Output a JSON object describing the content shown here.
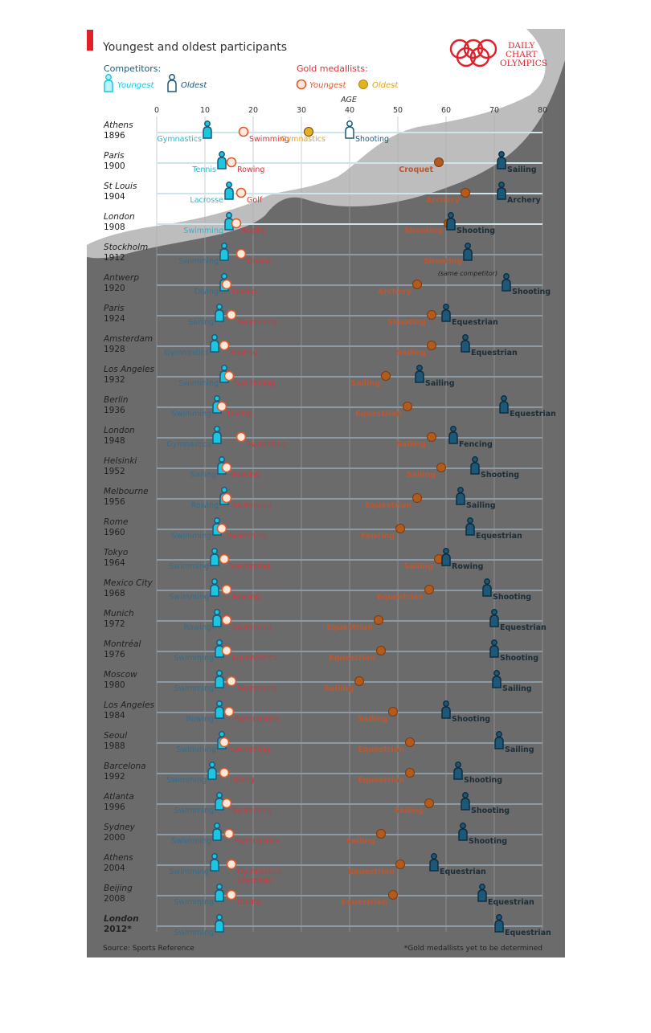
{
  "header": {
    "title": "Youngest and oldest participants",
    "brand_line1": "DAILY",
    "brand_line2": "CHART",
    "brand_line3": "OLYMPICS"
  },
  "legend": {
    "competitors_label": "Competitors:",
    "youngest": "Youngest",
    "oldest": "Oldest",
    "medallists_label": "Gold medallists:",
    "gold_youngest": "Youngest",
    "gold_oldest": "Oldest"
  },
  "footer": {
    "source": "Source: Sports Reference",
    "note": "*Gold medallists yet to be determined"
  },
  "colors": {
    "accent_red": "#e1202b",
    "competitor_youngest": "#1bc7e0",
    "competitor_oldest": "#1d5878",
    "gold_youngest_stroke": "#e05a2b",
    "gold_oldest_fill": "#e3b21e",
    "sport_red": "#d8353b",
    "sport_orange": "#c4552b",
    "sport_blue": "#2f6f92",
    "ghost_grey": "#bdbdbd",
    "background": "#ffffff"
  },
  "chart_data": {
    "type": "scatter",
    "title": "Youngest and oldest participants",
    "xlabel": "AGE",
    "xlim": [
      0,
      80
    ],
    "xticks": [
      0,
      10,
      20,
      30,
      40,
      50,
      60,
      70,
      80
    ],
    "grid": true,
    "legend_position": "top",
    "series_names": [
      "Competitors: Youngest",
      "Competitors: Oldest",
      "Gold medallists: Youngest",
      "Gold medallists: Oldest"
    ],
    "rows": [
      {
        "city": "Athens",
        "year": "1896",
        "cy": 10.5,
        "cy_sport": "Gymnastics",
        "gy": 18,
        "gy_sport": "Swimming",
        "go": 31.5,
        "go_sport": "Gymnastics",
        "co": 40,
        "co_sport": "Shooting"
      },
      {
        "city": "Paris",
        "year": "1900",
        "cy": 13.5,
        "cy_sport": "Tennis",
        "gy": 15.5,
        "gy_sport": "Rowing",
        "go": 58.5,
        "go_sport": "Croquet",
        "co": 71.5,
        "co_sport": "Sailing"
      },
      {
        "city": "St Louis",
        "year": "1904",
        "cy": 15,
        "cy_sport": "Lacrosse",
        "gy": 17.5,
        "gy_sport": "Golf",
        "go": 64,
        "go_sport": "Archery",
        "co": 71.5,
        "co_sport": "Archery"
      },
      {
        "city": "London",
        "year": "1908",
        "cy": 15,
        "cy_sport": "Swimming",
        "gy": 16.5,
        "gy_sport": "Rugby",
        "go": 60.5,
        "go_sport": "Shooting",
        "co": 61,
        "co_sport": "Shooting"
      },
      {
        "city": "Stockholm",
        "year": "1912",
        "cy": 14,
        "cy_sport": "Swimming",
        "gy": 17.5,
        "gy_sport": "Diving",
        "go": 64.5,
        "go_sport": "Shooting",
        "co": 64.5,
        "co_sport": "",
        "note": "(same competitor)"
      },
      {
        "city": "Antwerp",
        "year": "1920",
        "cy": 14,
        "cy_sport": "Diving",
        "gy": 14.5,
        "gy_sport": "Diving",
        "go": 54,
        "go_sport": "Archery",
        "co": 72.5,
        "co_sport": "Shooting"
      },
      {
        "city": "Paris",
        "year": "1924",
        "cy": 13,
        "cy_sport": "Sailing",
        "gy": 15.5,
        "gy_sport": "Swimming",
        "go": 57,
        "go_sport": "Shooting",
        "co": 60,
        "co_sport": "Equestrian"
      },
      {
        "city": "Amsterdam",
        "year": "1928",
        "cy": 12,
        "cy_sport": "Gymnastics",
        "gy": 14,
        "gy_sport": "Rowing",
        "go": 57,
        "go_sport": "Sailing",
        "co": 64,
        "co_sport": "Equestrian"
      },
      {
        "city": "Los Angeles",
        "year": "1932",
        "cy": 14,
        "cy_sport": "Swimming",
        "gy": 15,
        "gy_sport": "Swimming",
        "go": 47.5,
        "go_sport": "Sailing",
        "co": 54.5,
        "co_sport": "Sailing"
      },
      {
        "city": "Berlin",
        "year": "1936",
        "cy": 12.5,
        "cy_sport": "Swimming",
        "gy": 13.5,
        "gy_sport": "Diving",
        "go": 52,
        "go_sport": "Equestrian",
        "co": 72,
        "co_sport": "Equestrian"
      },
      {
        "city": "London",
        "year": "1948",
        "cy": 12.5,
        "cy_sport": "Gymnastics",
        "gy": 17.5,
        "gy_sport": "Swimming",
        "go": 57,
        "go_sport": "Sailing",
        "co": 61.5,
        "co_sport": "Fencing"
      },
      {
        "city": "Helsinki",
        "year": "1952",
        "cy": 13.5,
        "cy_sport": "Sailing",
        "gy": 14.5,
        "gy_sport": "Rowing",
        "go": 59,
        "go_sport": "Sailing",
        "co": 66,
        "co_sport": "Shooting"
      },
      {
        "city": "Melbourne",
        "year": "1956",
        "cy": 14,
        "cy_sport": "Rowing",
        "gy": 14.5,
        "gy_sport": "Swimming",
        "go": 54,
        "go_sport": "Equestrian",
        "co": 63,
        "co_sport": "Sailing"
      },
      {
        "city": "Rome",
        "year": "1960",
        "cy": 12.5,
        "cy_sport": "Swimming",
        "gy": 13.5,
        "gy_sport": "Swimming",
        "go": 50.5,
        "go_sport": "Fencing",
        "co": 65,
        "co_sport": "Equestrian"
      },
      {
        "city": "Tokyo",
        "year": "1964",
        "cy": 12,
        "cy_sport": "Swimming",
        "gy": 14,
        "gy_sport": "Swimming",
        "go": 58.5,
        "go_sport": "Sailing",
        "co": 60,
        "co_sport": "Rowing"
      },
      {
        "city": "Mexico City",
        "year": "1968",
        "cy": 12,
        "cy_sport": "Swimming",
        "gy": 14.5,
        "gy_sport": "Rowing",
        "go": 56.5,
        "go_sport": "Equestrian",
        "co": 68.5,
        "co_sport": "Shooting"
      },
      {
        "city": "Munich",
        "year": "1972",
        "cy": 12.5,
        "cy_sport": "Rowing",
        "gy": 14.5,
        "gy_sport": "Swimming",
        "go": 46,
        "go_sport": "Equestrian",
        "co": 70,
        "co_sport": "Equestrian"
      },
      {
        "city": "Montréal",
        "year": "1976",
        "cy": 13,
        "cy_sport": "Swimming",
        "gy": 14.5,
        "gy_sport": "Gymnastics",
        "go": 46.5,
        "go_sport": "Equestrian",
        "co": 70,
        "co_sport": "Shooting"
      },
      {
        "city": "Moscow",
        "year": "1980",
        "cy": 13,
        "cy_sport": "Swimming",
        "gy": 15.5,
        "gy_sport": "Swimming",
        "go": 42,
        "go_sport": "Sailing",
        "co": 70.5,
        "co_sport": "Sailing"
      },
      {
        "city": "Los Angeles",
        "year": "1984",
        "cy": 13,
        "cy_sport": "Rowing",
        "gy": 15,
        "gy_sport": "Gymnastics",
        "go": 49,
        "go_sport": "Sailing",
        "co": 60,
        "co_sport": "Shooting"
      },
      {
        "city": "Seoul",
        "year": "1988",
        "cy": 13.5,
        "cy_sport": "Swimming",
        "gy": 14,
        "gy_sport": "Swimming",
        "go": 52.5,
        "go_sport": "Equestrian",
        "co": 71,
        "co_sport": "Sailing"
      },
      {
        "city": "Barcelona",
        "year": "1992",
        "cy": 11.5,
        "cy_sport": "Swimming",
        "gy": 14,
        "gy_sport": "Diving",
        "go": 52.5,
        "go_sport": "Equestrian",
        "co": 62.5,
        "co_sport": "Shooting"
      },
      {
        "city": "Atlanta",
        "year": "1996",
        "cy": 13,
        "cy_sport": "Swimming",
        "gy": 14.5,
        "gy_sport": "Swimming",
        "go": 56.5,
        "go_sport": "Sailing",
        "co": 64,
        "co_sport": "Shooting"
      },
      {
        "city": "Sydney",
        "year": "2000",
        "cy": 12.5,
        "cy_sport": "Swimming",
        "gy": 15,
        "gy_sport": "Gymnastics",
        "go": 46.5,
        "go_sport": "Sailing",
        "co": 63.5,
        "co_sport": "Shooting"
      },
      {
        "city": "Athens",
        "year": "2004",
        "cy": 12,
        "cy_sport": "Swimming",
        "gy": 15.5,
        "gy_sport": "Gymnastics",
        "gy_note": "(rhythmic)",
        "go": 50.5,
        "go_sport": "Equestrian",
        "co": 57.5,
        "co_sport": "Equestrian"
      },
      {
        "city": "Beijing",
        "year": "2008",
        "cy": 13,
        "cy_sport": "Swimming",
        "gy": 15.5,
        "gy_sport": "Diving",
        "go": 49,
        "go_sport": "Equestrian",
        "co": 67.5,
        "co_sport": "Equestrian"
      },
      {
        "city": "London",
        "year": "2012*",
        "cy": 13,
        "cy_sport": "Swimming",
        "co": 71,
        "co_sport": "Equestrian"
      }
    ]
  }
}
